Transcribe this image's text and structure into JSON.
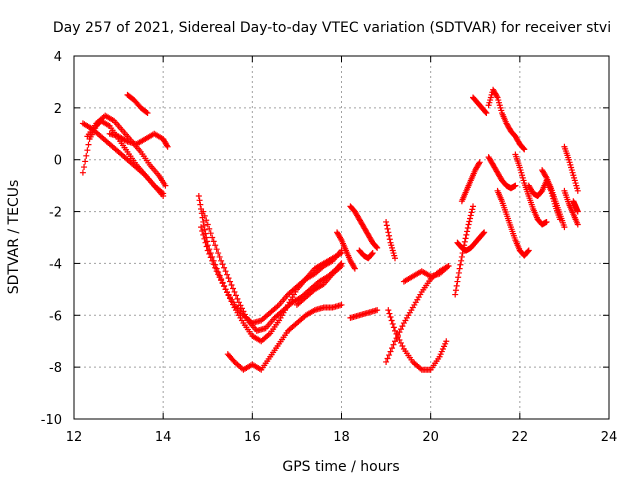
{
  "chart_data": {
    "type": "scatter",
    "title": "Day 257 of 2021, Sidereal Day-to-day VTEC variation (SDTVAR) for receiver stvi",
    "xlabel": "GPS time / hours",
    "ylabel": "SDTVAR / TECUs",
    "xlim": [
      12,
      24
    ],
    "ylim": [
      -10,
      4
    ],
    "xticks": [
      "12",
      "14",
      "16",
      "18",
      "20",
      "22",
      "24"
    ],
    "yticks": [
      "-10",
      "-8",
      "-6",
      "-4",
      "-2",
      "0",
      "2",
      "4"
    ],
    "grid": true,
    "marker": "+",
    "color": "#ff0000",
    "series": [
      {
        "x": [
          12.2,
          12.35,
          12.5,
          12.6,
          12.8,
          13.0,
          13.2,
          13.4,
          13.6,
          13.8,
          14.0
        ],
        "y": [
          -0.5,
          0.8,
          1.3,
          1.5,
          1.3,
          0.8,
          0.3,
          -0.2,
          -0.6,
          -1.0,
          -1.3
        ]
      },
      {
        "x": [
          12.2,
          12.4,
          12.6,
          12.8,
          13.0,
          13.2,
          13.4,
          13.6,
          13.8,
          14.0
        ],
        "y": [
          1.4,
          1.2,
          0.9,
          0.6,
          0.3,
          0.0,
          -0.3,
          -0.6,
          -1.0,
          -1.4
        ]
      },
      {
        "x": [
          12.3,
          12.5,
          12.7,
          12.9,
          13.1,
          13.3,
          13.5,
          13.7,
          13.9,
          14.05
        ],
        "y": [
          0.9,
          1.4,
          1.7,
          1.5,
          1.1,
          0.7,
          0.3,
          -0.2,
          -0.6,
          -1.0
        ]
      },
      {
        "x": [
          12.8,
          13.0,
          13.2,
          13.4,
          13.6,
          13.8,
          14.0,
          14.1
        ],
        "y": [
          1.0,
          0.9,
          0.7,
          0.6,
          0.8,
          1.0,
          0.8,
          0.5
        ]
      },
      {
        "x": [
          13.2,
          13.35,
          13.5,
          13.65
        ],
        "y": [
          2.5,
          2.3,
          2.0,
          1.8
        ]
      },
      {
        "x": [
          14.8,
          14.9,
          15.0,
          15.2,
          15.4,
          15.6,
          15.8,
          16.0,
          16.2,
          16.4,
          16.6,
          16.8,
          17.0,
          17.2,
          17.4,
          17.6,
          17.8,
          18.0
        ],
        "y": [
          -1.4,
          -2.4,
          -3.3,
          -4.2,
          -5.0,
          -5.7,
          -6.3,
          -6.8,
          -7.0,
          -6.7,
          -6.2,
          -5.6,
          -5.0,
          -4.6,
          -4.2,
          -4.0,
          -3.8,
          -3.6
        ]
      },
      {
        "x": [
          14.85,
          15.0,
          15.2,
          15.4,
          15.6,
          15.8,
          16.0,
          16.2,
          16.4,
          16.6,
          16.8,
          17.0,
          17.2,
          17.4,
          17.6,
          17.8,
          18.0
        ],
        "y": [
          -2.6,
          -3.5,
          -4.3,
          -5.0,
          -5.6,
          -6.0,
          -6.3,
          -6.2,
          -5.9,
          -5.6,
          -5.2,
          -4.9,
          -4.6,
          -4.4,
          -4.1,
          -3.9,
          -3.5
        ]
      },
      {
        "x": [
          14.9,
          15.1,
          15.3,
          15.5,
          15.7,
          15.9,
          16.1,
          16.3,
          16.5,
          16.7,
          16.9,
          17.1,
          17.3,
          17.5,
          17.7,
          17.9,
          18.0
        ],
        "y": [
          -2.0,
          -3.0,
          -3.9,
          -4.7,
          -5.5,
          -6.2,
          -6.6,
          -6.5,
          -6.1,
          -5.8,
          -5.5,
          -5.3,
          -5.0,
          -4.7,
          -4.5,
          -4.2,
          -4.0
        ]
      },
      {
        "x": [
          15.45,
          15.6,
          15.8,
          16.0,
          16.2,
          16.4,
          16.6,
          16.8,
          17.0,
          17.2,
          17.4,
          17.6,
          17.8,
          18.0
        ],
        "y": [
          -7.5,
          -7.8,
          -8.1,
          -7.9,
          -8.1,
          -7.6,
          -7.1,
          -6.6,
          -6.3,
          -6.0,
          -5.8,
          -5.7,
          -5.7,
          -5.6
        ]
      },
      {
        "x": [
          17.0,
          17.2,
          17.4,
          17.6,
          17.8,
          18.0
        ],
        "y": [
          -5.6,
          -5.3,
          -5.0,
          -4.8,
          -4.4,
          -4.1
        ]
      },
      {
        "x": [
          18.2,
          18.3,
          18.4,
          18.5,
          18.6,
          18.7,
          18.8
        ],
        "y": [
          -1.8,
          -2.0,
          -2.3,
          -2.6,
          -2.9,
          -3.2,
          -3.4
        ]
      },
      {
        "x": [
          17.9,
          18.0,
          18.1,
          18.2,
          18.3
        ],
        "y": [
          -2.8,
          -3.1,
          -3.5,
          -3.9,
          -4.2
        ]
      },
      {
        "x": [
          18.4,
          18.5,
          18.6,
          18.7
        ],
        "y": [
          -3.5,
          -3.7,
          -3.8,
          -3.6
        ]
      },
      {
        "x": [
          18.2,
          18.4,
          18.6,
          18.8
        ],
        "y": [
          -6.1,
          -6.0,
          -5.9,
          -5.8
        ]
      },
      {
        "x": [
          19.0,
          19.1,
          19.2
        ],
        "y": [
          -2.4,
          -3.2,
          -3.8
        ]
      },
      {
        "x": [
          19.05,
          19.2,
          19.4,
          19.6,
          19.8,
          20.0,
          20.2,
          20.35
        ],
        "y": [
          -5.8,
          -6.6,
          -7.3,
          -7.8,
          -8.1,
          -8.1,
          -7.6,
          -7.0
        ]
      },
      {
        "x": [
          19.0,
          19.2,
          19.4,
          19.6,
          19.8,
          20.0,
          20.2,
          20.4
        ],
        "y": [
          -7.8,
          -7.0,
          -6.3,
          -5.7,
          -5.1,
          -4.6,
          -4.3,
          -4.1
        ]
      },
      {
        "x": [
          19.4,
          19.6,
          19.8,
          20.0,
          20.2,
          20.4
        ],
        "y": [
          -4.7,
          -4.5,
          -4.3,
          -4.5,
          -4.4,
          -4.1
        ]
      },
      {
        "x": [
          20.6,
          20.7,
          20.8,
          20.9,
          21.0,
          21.1,
          21.2
        ],
        "y": [
          -3.2,
          -3.4,
          -3.5,
          -3.4,
          -3.2,
          -3.0,
          -2.8
        ]
      },
      {
        "x": [
          20.55,
          20.65,
          20.75,
          20.85,
          20.95
        ],
        "y": [
          -5.2,
          -4.2,
          -3.3,
          -2.5,
          -1.8
        ]
      },
      {
        "x": [
          20.7,
          20.8,
          20.9,
          21.0,
          21.1
        ],
        "y": [
          -1.6,
          -1.2,
          -0.8,
          -0.4,
          -0.1
        ]
      },
      {
        "x": [
          20.95,
          21.05,
          21.15,
          21.25
        ],
        "y": [
          2.4,
          2.2,
          2.0,
          1.8
        ]
      },
      {
        "x": [
          21.3,
          21.4,
          21.5,
          21.6,
          21.7,
          21.8,
          21.9,
          22.0,
          22.1
        ],
        "y": [
          2.1,
          2.7,
          2.4,
          1.8,
          1.4,
          1.1,
          0.9,
          0.6,
          0.4
        ]
      },
      {
        "x": [
          21.3,
          21.4,
          21.5,
          21.6,
          21.7,
          21.8,
          21.9
        ],
        "y": [
          0.1,
          -0.2,
          -0.5,
          -0.8,
          -1.0,
          -1.1,
          -1.0
        ]
      },
      {
        "x": [
          21.5,
          21.6,
          21.7,
          21.8,
          21.9,
          22.0,
          22.1,
          22.2
        ],
        "y": [
          -1.2,
          -1.6,
          -2.1,
          -2.6,
          -3.1,
          -3.5,
          -3.7,
          -3.5
        ]
      },
      {
        "x": [
          21.9,
          22.0,
          22.1,
          22.2,
          22.3,
          22.4,
          22.5,
          22.6
        ],
        "y": [
          0.2,
          -0.3,
          -0.9,
          -1.4,
          -1.9,
          -2.3,
          -2.5,
          -2.4
        ]
      },
      {
        "x": [
          22.2,
          22.3,
          22.4,
          22.5,
          22.6,
          22.7,
          22.8,
          22.9
        ],
        "y": [
          -1.0,
          -1.3,
          -1.4,
          -1.2,
          -0.8,
          -1.2,
          -1.8,
          -2.3
        ]
      },
      {
        "x": [
          22.5,
          22.6,
          22.7,
          22.8,
          22.9,
          23.0
        ],
        "y": [
          -0.4,
          -0.7,
          -1.1,
          -1.6,
          -2.1,
          -2.6
        ]
      },
      {
        "x": [
          23.0,
          23.1,
          23.2,
          23.3
        ],
        "y": [
          0.5,
          0.0,
          -0.6,
          -1.2
        ]
      },
      {
        "x": [
          23.0,
          23.1,
          23.2,
          23.3
        ],
        "y": [
          -1.2,
          -1.7,
          -2.1,
          -2.5
        ]
      },
      {
        "x": [
          23.2,
          23.25,
          23.3
        ],
        "y": [
          -1.6,
          -1.8,
          -2.0
        ]
      }
    ]
  }
}
